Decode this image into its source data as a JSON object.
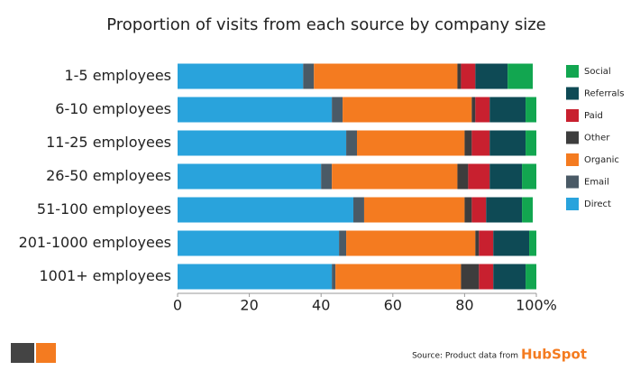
{
  "chart_data": {
    "type": "stacked-barh",
    "title": "Proportion of visits from each source by company size",
    "categories": [
      "1-5 employees",
      "6-10 employees",
      "11-25 employees",
      "26-50 employees",
      "51-100 employees",
      "201-1000 employees",
      "1001+ employees"
    ],
    "series": [
      {
        "name": "Direct",
        "color": "#29a3dc",
        "values": [
          35,
          43,
          47,
          40,
          49,
          45,
          43
        ]
      },
      {
        "name": "Email",
        "color": "#4a5a66",
        "values": [
          3,
          3,
          3,
          3,
          3,
          2,
          1
        ]
      },
      {
        "name": "Organic",
        "color": "#f47b20",
        "values": [
          40,
          36,
          30,
          35,
          28,
          36,
          35
        ]
      },
      {
        "name": "Other",
        "color": "#3d3d3d",
        "values": [
          1,
          1,
          2,
          3,
          2,
          1,
          5
        ]
      },
      {
        "name": "Paid",
        "color": "#c8202f",
        "values": [
          4,
          4,
          5,
          6,
          4,
          4,
          4
        ]
      },
      {
        "name": "Referrals",
        "color": "#0e4a55",
        "values": [
          9,
          10,
          10,
          9,
          10,
          10,
          9
        ]
      },
      {
        "name": "Social",
        "color": "#12a650",
        "values": [
          7,
          3,
          3,
          4,
          3,
          2,
          3
        ]
      }
    ],
    "xlim": [
      0,
      100
    ],
    "xticks": [
      0,
      20,
      40,
      60,
      80,
      {
        "value": 100,
        "label": "100%"
      }
    ],
    "legend_position": "right",
    "source": "Source: Product data from",
    "source_brand": "HubSpot"
  }
}
